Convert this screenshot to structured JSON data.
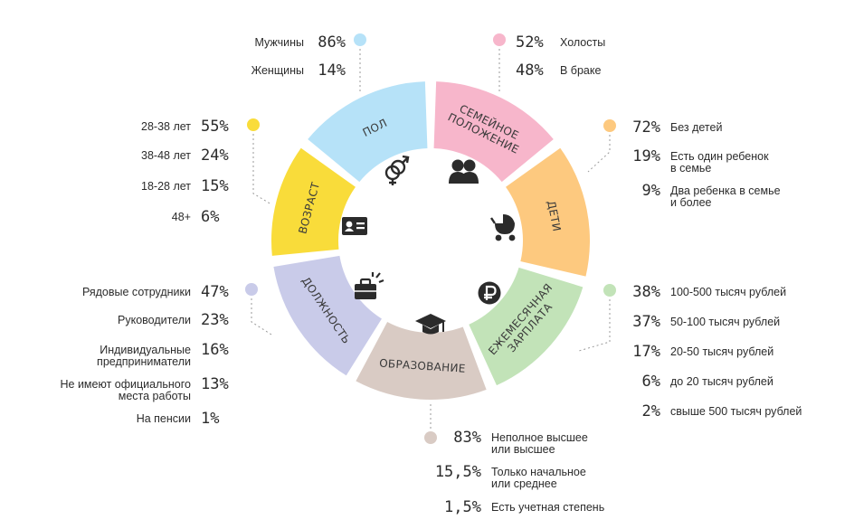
{
  "chart_data": {
    "type": "pie",
    "colors": {
      "pol": "#b6e2f8",
      "family": "#f7b6cb",
      "children": "#fdc97f",
      "salary": "#c2e3b8",
      "education": "#d9cbc4",
      "position": "#c9cbe9",
      "age": "#f9dc3a"
    },
    "segments": [
      {
        "id": "pol",
        "label": "ПОЛ",
        "icon": "gender-icon",
        "items": [
          {
            "label": "Мужчины",
            "pct": "86%"
          },
          {
            "label": "Женщины",
            "pct": "14%"
          }
        ]
      },
      {
        "id": "family",
        "label": "СЕМЕЙНОЕ ПОЛОЖЕНИЕ",
        "label_lines": [
          "СЕМЕЙНОЕ",
          "ПОЛОЖЕНИЕ"
        ],
        "icon": "couple-icon",
        "items": [
          {
            "label": "Холосты",
            "pct": "52%"
          },
          {
            "label": "В браке",
            "pct": "48%"
          }
        ]
      },
      {
        "id": "children",
        "label": "ДЕТИ",
        "icon": "stroller-icon",
        "items": [
          {
            "label": "Без детей",
            "pct": "72%"
          },
          {
            "label": "Есть один ребенок в семье",
            "label_lines": [
              "Есть один ребенок",
              "в семье"
            ],
            "pct": "19%"
          },
          {
            "label": "Два ребенка в семье и более",
            "label_lines": [
              "Два ребенка в семье",
              "и более"
            ],
            "pct": "9%"
          }
        ]
      },
      {
        "id": "salary",
        "label": "ЕЖЕМЕСЯЧНАЯ ЗАРПЛАТА",
        "label_lines": [
          "ЕЖЕМЕСЯЧНАЯ",
          "ЗАРПЛАТА"
        ],
        "icon": "ruble-icon",
        "items": [
          {
            "label": "100-500 тысяч рублей",
            "pct": "38%"
          },
          {
            "label": "50-100 тысяч рублей",
            "pct": "37%"
          },
          {
            "label": "20-50 тысяч рублей",
            "pct": "17%"
          },
          {
            "label": "до 20 тысяч рублей",
            "pct": "6%"
          },
          {
            "label": "свыше 500 тысяч рублей",
            "pct": "2%"
          }
        ]
      },
      {
        "id": "education",
        "label": "ОБРАЗОВАНИЕ",
        "icon": "graduation-cap-icon",
        "items": [
          {
            "label": "Неполное высшее или высшее",
            "label_lines": [
              "Неполное высшее",
              "или высшее"
            ],
            "pct": "83%"
          },
          {
            "label": "Только начальное или среднее",
            "label_lines": [
              "Только начальное",
              "или среднее"
            ],
            "pct": "15,5%"
          },
          {
            "label": "Есть учетная степень",
            "pct": "1,5%"
          }
        ]
      },
      {
        "id": "position",
        "label": "ДОЛЖНОСТЬ",
        "icon": "briefcase-icon",
        "items": [
          {
            "label": "Рядовые сотрудники",
            "pct": "47%"
          },
          {
            "label": "Руководители",
            "pct": "23%"
          },
          {
            "label": "Индивидуальные предприниматели",
            "label_lines": [
              "Индивидуальные",
              "предприниматели"
            ],
            "pct": "16%"
          },
          {
            "label": "Не имеют официального места работы",
            "label_lines": [
              "Не имеют официального",
              "места работы"
            ],
            "pct": "13%"
          },
          {
            "label": "На пенсии",
            "pct": "1%"
          }
        ]
      },
      {
        "id": "age",
        "label": "ВОЗРАСТ",
        "icon": "id-card-icon",
        "items": [
          {
            "label": "28-38 лет",
            "pct": "55%"
          },
          {
            "label": "38-48 лет",
            "pct": "24%"
          },
          {
            "label": "18-28 лет",
            "pct": "15%"
          },
          {
            "label": "48+",
            "pct": "6%"
          }
        ]
      }
    ]
  }
}
